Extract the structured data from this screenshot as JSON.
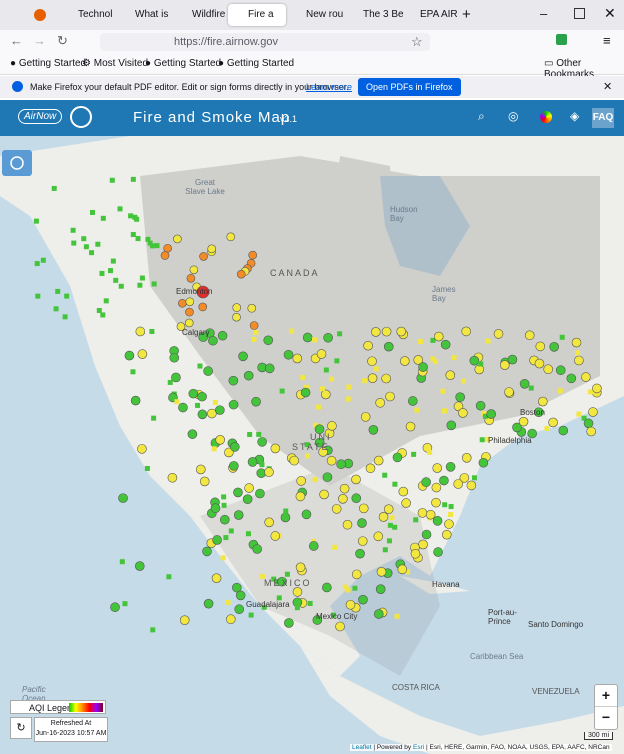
{
  "browser": {
    "tabs": [
      "Technol",
      "What is",
      "Wildfire",
      "Fire a",
      "New rou",
      "The 3 Be",
      "EPA AIR"
    ],
    "url": "https://fire.airnow.gov",
    "bookmarks": [
      "Getting Started",
      "Most Visited",
      "Getting Started",
      "Getting Started"
    ],
    "other_bookmarks": "Other Bookmarks"
  },
  "notification": {
    "message": "Make Firefox your default PDF editor. Edit or sign forms directly in your browser.",
    "link": "Learn more",
    "button": "Open PDFs in Firefox"
  },
  "app": {
    "logo": "AirNow",
    "title": "Fire and Smoke Map",
    "version": "v3.1",
    "faq": "FAQ"
  },
  "map": {
    "labels": [
      "CANADA",
      "UNI",
      "STATE",
      "MEXICO",
      "Great Slave Lake",
      "Hudson Bay",
      "James Bay",
      "Edmonton",
      "Calgary",
      "Boston",
      "Philadelphia",
      "Havana",
      "Port-au-Prince",
      "Santo Domingo",
      "Caribbean Sea",
      "Guadalajara",
      "Mexico City",
      "Pacific Ocean",
      "COSTA RICA",
      "VENEZUELA"
    ]
  },
  "legend": {
    "title": "AQI Legend",
    "refreshed_label": "Refreshed At",
    "refreshed_time": "Jun-16-2023 10:57 AM",
    "scale": "300 mi"
  },
  "zoom": {
    "in": "+",
    "out": "−"
  },
  "attribution": {
    "leaflet": "Leaflet",
    "powered": "| Powered by",
    "esri": "Esri",
    "sources": "| Esri, HERE, Garmin, FAO, NOAA, USGS, EPA, AAFC, NRCan"
  }
}
